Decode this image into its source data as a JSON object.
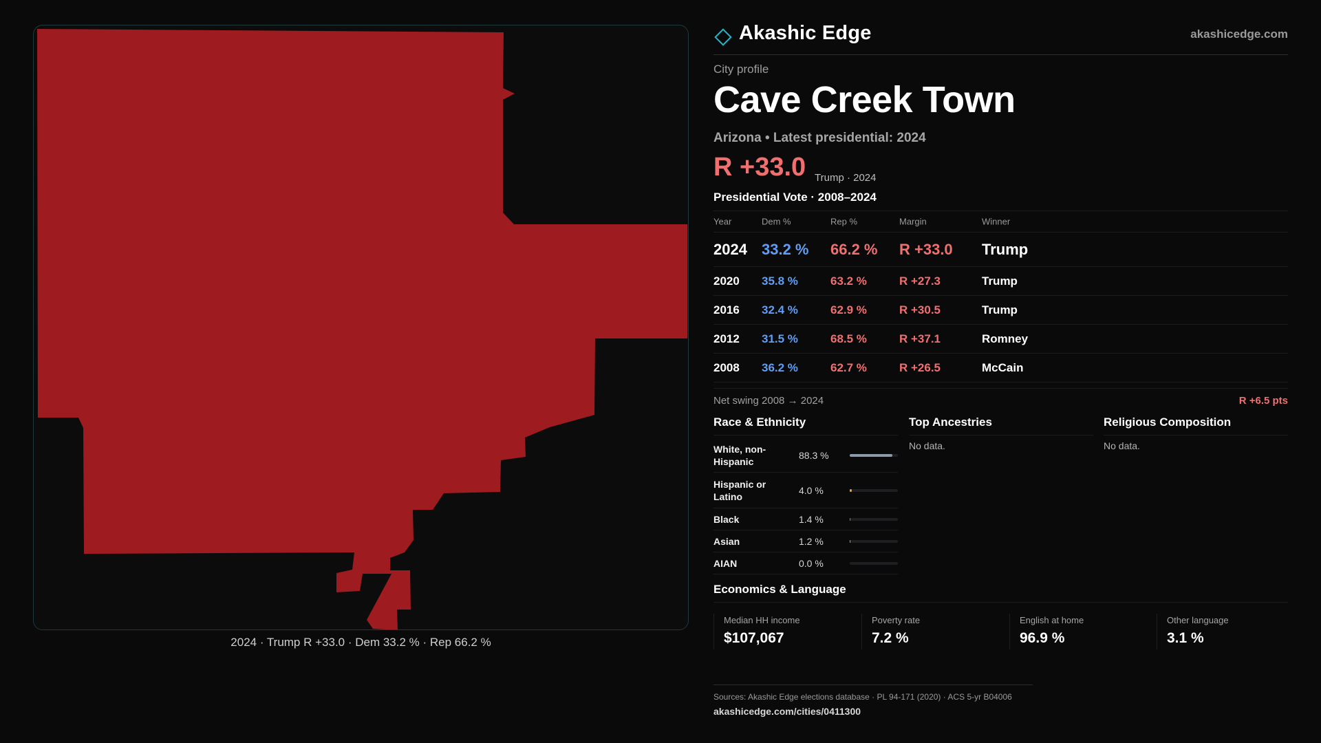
{
  "brand": {
    "name": "Akashic Edge",
    "url": "akashicedge.com",
    "logo_icon": "diamond-outline-icon",
    "accent": "#22b8c8"
  },
  "profile": {
    "eyebrow": "City profile",
    "title": "Cave Creek Town",
    "subtitle": "Arizona • Latest presidential: 2024",
    "headline_margin": "R +33.0",
    "headline_note": "Trump · 2024"
  },
  "map": {
    "fill_color": "#9e1b1f",
    "caption": "2024 · Trump R +33.0 · Dem 33.2 % · Rep 66.2 %"
  },
  "vote": {
    "title": "Presidential Vote · 2008–2024",
    "headers": {
      "year": "Year",
      "dem": "Dem %",
      "rep": "Rep %",
      "margin": "Margin",
      "winner": "Winner"
    },
    "rows": [
      {
        "year": "2024",
        "dem": "33.2 %",
        "rep": "66.2 %",
        "margin": "R +33.0",
        "winner": "Trump"
      },
      {
        "year": "2020",
        "dem": "35.8 %",
        "rep": "63.2 %",
        "margin": "R +27.3",
        "winner": "Trump"
      },
      {
        "year": "2016",
        "dem": "32.4 %",
        "rep": "62.9 %",
        "margin": "R +30.5",
        "winner": "Trump"
      },
      {
        "year": "2012",
        "dem": "31.5 %",
        "rep": "68.5 %",
        "margin": "R +37.1",
        "winner": "Romney"
      },
      {
        "year": "2008",
        "dem": "36.2 %",
        "rep": "62.7 %",
        "margin": "R +26.5",
        "winner": "McCain"
      }
    ],
    "swing_label": "Net swing 2008 → 2024",
    "swing_value": "R +6.5 pts"
  },
  "race": {
    "title": "Race & Ethnicity",
    "rows": [
      {
        "label": "White, non-Hispanic",
        "value": "88.3 %",
        "pct": 88.3,
        "color": "#8e9aab"
      },
      {
        "label": "Hispanic or Latino",
        "value": "4.0 %",
        "pct": 4.0,
        "color": "#e8a43c"
      },
      {
        "label": "Black",
        "value": "1.4 %",
        "pct": 1.4,
        "color": "#8a6ed8"
      },
      {
        "label": "Asian",
        "value": "1.2 %",
        "pct": 1.2,
        "color": "#4fc0a8"
      },
      {
        "label": "AIAN",
        "value": "0.0 %",
        "pct": 0.0,
        "color": "#c0c0c0"
      }
    ]
  },
  "ancestries": {
    "title": "Top Ancestries",
    "empty": "No data."
  },
  "religion": {
    "title": "Religious Composition",
    "empty": "No data."
  },
  "economics": {
    "title": "Economics & Language",
    "items": [
      {
        "label": "Median HH income",
        "value": "$107,067"
      },
      {
        "label": "Poverty rate",
        "value": "7.2 %"
      },
      {
        "label": "English at home",
        "value": "96.9 %"
      },
      {
        "label": "Other language",
        "value": "3.1 %"
      }
    ]
  },
  "footer": {
    "sources": "Sources: Akashic Edge elections database · PL 94-171 (2020) · ACS 5-yr B04006",
    "url": "akashicedge.com/cities/0411300"
  }
}
